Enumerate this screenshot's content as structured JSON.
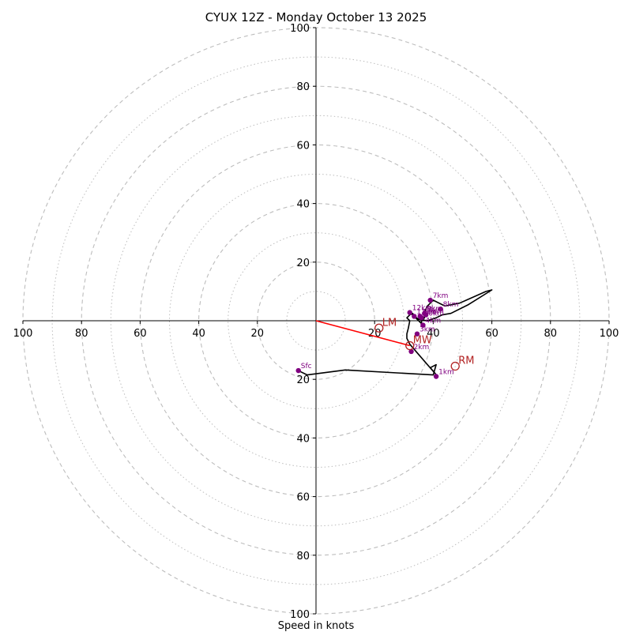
{
  "chart_data": {
    "type": "hodograph",
    "title": "CYUX 12Z - Monday October 13 2025",
    "xlabel": "Speed in knots",
    "units": "knots",
    "range": [
      -100,
      100
    ],
    "tick_labels": {
      "x": [
        "100",
        "80",
        "60",
        "40",
        "20",
        "20",
        "40",
        "60",
        "80",
        "100"
      ],
      "y": [
        "100",
        "80",
        "60",
        "40",
        "20",
        "20",
        "40",
        "60",
        "80",
        "100"
      ]
    },
    "ring_major": [
      20,
      40,
      60,
      80,
      100
    ],
    "ring_minor": [
      10,
      30,
      50,
      70,
      90
    ],
    "hodograph_trace": [
      [
        -6,
        -17
      ],
      [
        -3,
        -18.5
      ],
      [
        10,
        -16.8
      ],
      [
        40,
        -18.5
      ],
      [
        41,
        -15
      ],
      [
        39,
        -16
      ],
      [
        41.5,
        -19
      ],
      [
        35,
        -11.5
      ],
      [
        32,
        -8
      ],
      [
        31.5,
        -7
      ],
      [
        31,
        -6
      ],
      [
        31,
        -4.5
      ],
      [
        31.5,
        -2.5
      ],
      [
        32,
        0
      ],
      [
        31,
        1
      ],
      [
        32,
        2
      ],
      [
        33,
        2.5
      ],
      [
        34,
        1
      ],
      [
        35,
        0
      ],
      [
        36,
        -1
      ],
      [
        36,
        0
      ],
      [
        37,
        1
      ],
      [
        37,
        3
      ],
      [
        38,
        5
      ],
      [
        39,
        6
      ],
      [
        40,
        7
      ],
      [
        44,
        5
      ],
      [
        49,
        6
      ],
      [
        58,
        10
      ],
      [
        60,
        10.5
      ],
      [
        52,
        5.5
      ],
      [
        46,
        2.5
      ],
      [
        43,
        2
      ],
      [
        41,
        1
      ],
      [
        38,
        0
      ],
      [
        35,
        0.5
      ],
      [
        33,
        2
      ],
      [
        32,
        2.5
      ]
    ],
    "height_markers": [
      {
        "label": "Sfc",
        "u": -6,
        "v": -17
      },
      {
        "label": "1km",
        "u": 41,
        "v": -19
      },
      {
        "label": "2km",
        "u": 32.5,
        "v": -10.5
      },
      {
        "label": "3km",
        "u": 34.5,
        "v": -4.5
      },
      {
        "label": "4km",
        "u": 36.5,
        "v": -1.5
      },
      {
        "label": "5km",
        "u": 35.5,
        "v": 1.5
      },
      {
        "label": "6km",
        "u": 37.5,
        "v": 2
      },
      {
        "label": "7km",
        "u": 39,
        "v": 7
      },
      {
        "label": "8km",
        "u": 42.5,
        "v": 4
      },
      {
        "label": "9km",
        "u": 37,
        "v": 2.5
      },
      {
        "label": "10km",
        "u": 36,
        "v": 1
      },
      {
        "label": "11km",
        "u": 33.5,
        "v": 1.5
      },
      {
        "label": "12km",
        "u": 32,
        "v": 2.8
      }
    ],
    "storm_motions": [
      {
        "label": "LM",
        "u": 21.5,
        "v": -2.5
      },
      {
        "label": "MW",
        "u": 32,
        "v": -8.5
      },
      {
        "label": "RM",
        "u": 47.5,
        "v": -15.5
      }
    ],
    "mean_wind_vector": {
      "from": [
        0,
        0
      ],
      "to": [
        32,
        -8.5
      ]
    },
    "colors": {
      "trace": "#000000",
      "markers": "#800080",
      "storm_motion": "#b22222",
      "mean_wind": "#ff0000",
      "rings": "#bdbdbd",
      "axes": "#000000"
    }
  }
}
